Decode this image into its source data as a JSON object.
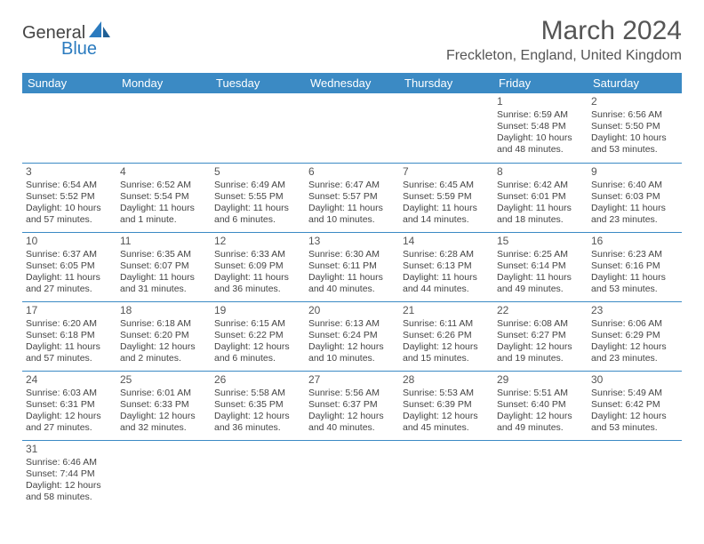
{
  "brand": {
    "line1": "General",
    "line2": "Blue",
    "brand_color": "#2b7bbf"
  },
  "header": {
    "month": "March 2024",
    "location": "Freckleton, England, United Kingdom"
  },
  "theme": {
    "header_bg": "#3b8ac4",
    "header_fg": "#ffffff",
    "border": "#3b8ac4",
    "text": "#444444"
  },
  "weekdays": [
    "Sunday",
    "Monday",
    "Tuesday",
    "Wednesday",
    "Thursday",
    "Friday",
    "Saturday"
  ],
  "calendar": {
    "first_weekday_index": 5,
    "days": [
      {
        "n": 1,
        "sunrise": "6:59 AM",
        "sunset": "5:48 PM",
        "daylight": "10 hours and 48 minutes."
      },
      {
        "n": 2,
        "sunrise": "6:56 AM",
        "sunset": "5:50 PM",
        "daylight": "10 hours and 53 minutes."
      },
      {
        "n": 3,
        "sunrise": "6:54 AM",
        "sunset": "5:52 PM",
        "daylight": "10 hours and 57 minutes."
      },
      {
        "n": 4,
        "sunrise": "6:52 AM",
        "sunset": "5:54 PM",
        "daylight": "11 hours and 1 minute."
      },
      {
        "n": 5,
        "sunrise": "6:49 AM",
        "sunset": "5:55 PM",
        "daylight": "11 hours and 6 minutes."
      },
      {
        "n": 6,
        "sunrise": "6:47 AM",
        "sunset": "5:57 PM",
        "daylight": "11 hours and 10 minutes."
      },
      {
        "n": 7,
        "sunrise": "6:45 AM",
        "sunset": "5:59 PM",
        "daylight": "11 hours and 14 minutes."
      },
      {
        "n": 8,
        "sunrise": "6:42 AM",
        "sunset": "6:01 PM",
        "daylight": "11 hours and 18 minutes."
      },
      {
        "n": 9,
        "sunrise": "6:40 AM",
        "sunset": "6:03 PM",
        "daylight": "11 hours and 23 minutes."
      },
      {
        "n": 10,
        "sunrise": "6:37 AM",
        "sunset": "6:05 PM",
        "daylight": "11 hours and 27 minutes."
      },
      {
        "n": 11,
        "sunrise": "6:35 AM",
        "sunset": "6:07 PM",
        "daylight": "11 hours and 31 minutes."
      },
      {
        "n": 12,
        "sunrise": "6:33 AM",
        "sunset": "6:09 PM",
        "daylight": "11 hours and 36 minutes."
      },
      {
        "n": 13,
        "sunrise": "6:30 AM",
        "sunset": "6:11 PM",
        "daylight": "11 hours and 40 minutes."
      },
      {
        "n": 14,
        "sunrise": "6:28 AM",
        "sunset": "6:13 PM",
        "daylight": "11 hours and 44 minutes."
      },
      {
        "n": 15,
        "sunrise": "6:25 AM",
        "sunset": "6:14 PM",
        "daylight": "11 hours and 49 minutes."
      },
      {
        "n": 16,
        "sunrise": "6:23 AM",
        "sunset": "6:16 PM",
        "daylight": "11 hours and 53 minutes."
      },
      {
        "n": 17,
        "sunrise": "6:20 AM",
        "sunset": "6:18 PM",
        "daylight": "11 hours and 57 minutes."
      },
      {
        "n": 18,
        "sunrise": "6:18 AM",
        "sunset": "6:20 PM",
        "daylight": "12 hours and 2 minutes."
      },
      {
        "n": 19,
        "sunrise": "6:15 AM",
        "sunset": "6:22 PM",
        "daylight": "12 hours and 6 minutes."
      },
      {
        "n": 20,
        "sunrise": "6:13 AM",
        "sunset": "6:24 PM",
        "daylight": "12 hours and 10 minutes."
      },
      {
        "n": 21,
        "sunrise": "6:11 AM",
        "sunset": "6:26 PM",
        "daylight": "12 hours and 15 minutes."
      },
      {
        "n": 22,
        "sunrise": "6:08 AM",
        "sunset": "6:27 PM",
        "daylight": "12 hours and 19 minutes."
      },
      {
        "n": 23,
        "sunrise": "6:06 AM",
        "sunset": "6:29 PM",
        "daylight": "12 hours and 23 minutes."
      },
      {
        "n": 24,
        "sunrise": "6:03 AM",
        "sunset": "6:31 PM",
        "daylight": "12 hours and 27 minutes."
      },
      {
        "n": 25,
        "sunrise": "6:01 AM",
        "sunset": "6:33 PM",
        "daylight": "12 hours and 32 minutes."
      },
      {
        "n": 26,
        "sunrise": "5:58 AM",
        "sunset": "6:35 PM",
        "daylight": "12 hours and 36 minutes."
      },
      {
        "n": 27,
        "sunrise": "5:56 AM",
        "sunset": "6:37 PM",
        "daylight": "12 hours and 40 minutes."
      },
      {
        "n": 28,
        "sunrise": "5:53 AM",
        "sunset": "6:39 PM",
        "daylight": "12 hours and 45 minutes."
      },
      {
        "n": 29,
        "sunrise": "5:51 AM",
        "sunset": "6:40 PM",
        "daylight": "12 hours and 49 minutes."
      },
      {
        "n": 30,
        "sunrise": "5:49 AM",
        "sunset": "6:42 PM",
        "daylight": "12 hours and 53 minutes."
      },
      {
        "n": 31,
        "sunrise": "6:46 AM",
        "sunset": "7:44 PM",
        "daylight": "12 hours and 58 minutes."
      }
    ]
  },
  "labels": {
    "sunrise": "Sunrise:",
    "sunset": "Sunset:",
    "daylight": "Daylight:"
  }
}
